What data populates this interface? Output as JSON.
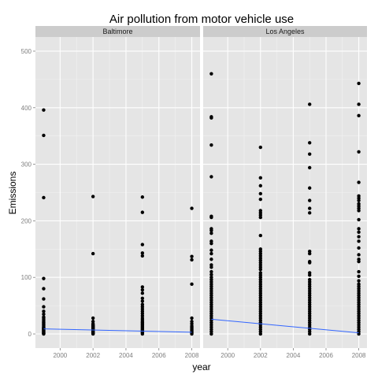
{
  "chart_data": {
    "type": "scatter",
    "title": "Air pollution from motor vehicle use",
    "xlabel": "year",
    "ylabel": "Emissions",
    "xlim": [
      1998.5,
      2008.5
    ],
    "ylim": [
      -25,
      525
    ],
    "x_ticks": [
      2000,
      2002,
      2004,
      2006,
      2008
    ],
    "y_ticks": [
      0,
      100,
      200,
      300,
      400,
      500
    ],
    "grid": true,
    "colors": {
      "panel": "#e5e5e5",
      "strip": "#cccccc",
      "grid": "#ffffff",
      "point": "#000000",
      "trend": "#3366ff"
    },
    "facets": [
      {
        "name": "Baltimore",
        "points": {
          "1999": [
            396,
            351,
            241,
            98,
            80,
            62,
            48,
            40,
            35,
            30,
            28,
            25,
            22,
            20,
            18,
            16,
            14,
            12,
            11,
            10,
            9,
            8,
            7,
            6,
            5,
            4,
            3,
            2,
            1,
            0.5,
            0
          ],
          "2002": [
            243,
            142,
            28,
            22,
            18,
            16,
            15,
            14,
            13,
            12,
            11,
            10,
            9,
            8,
            7,
            6,
            5,
            4,
            3,
            2,
            1,
            0.5,
            0
          ],
          "2005": [
            242,
            215,
            158,
            143,
            138,
            83,
            78,
            72,
            63,
            58,
            52,
            48,
            44,
            40,
            36,
            32,
            28,
            25,
            22,
            20,
            18,
            16,
            14,
            12,
            10,
            8,
            6,
            4,
            2,
            0
          ],
          "2008": [
            222,
            137,
            131,
            88,
            28,
            22,
            18,
            14,
            12,
            10,
            8,
            6,
            4,
            2,
            0
          ]
        },
        "trend": {
          "x": [
            1999,
            2008
          ],
          "y": [
            9,
            3
          ]
        }
      },
      {
        "name": "Los Angeles",
        "points": {
          "1999": [
            460,
            384,
            382,
            334,
            278,
            208,
            206,
            186,
            183,
            178,
            164,
            160,
            148,
            142,
            132,
            122,
            118,
            110,
            105,
            100,
            96,
            92,
            88,
            84,
            80,
            76,
            72,
            68,
            64,
            60,
            56,
            52,
            48,
            44,
            40,
            36,
            32,
            28,
            24,
            20,
            16,
            12,
            8,
            4,
            0
          ],
          "2002": [
            330,
            276,
            262,
            248,
            238,
            218,
            214,
            210,
            206,
            174,
            150,
            146,
            142,
            138,
            134,
            130,
            126,
            122,
            118,
            114,
            108,
            104,
            100,
            96,
            92,
            88,
            84,
            80,
            76,
            72,
            68,
            64,
            60,
            56,
            52,
            48,
            44,
            40,
            36,
            32,
            28,
            24,
            20,
            16,
            12,
            8,
            4,
            0
          ],
          "2005": [
            406,
            338,
            318,
            294,
            258,
            236,
            222,
            214,
            146,
            142,
            128,
            126,
            108,
            104,
            96,
            92,
            88,
            84,
            80,
            76,
            72,
            68,
            64,
            60,
            56,
            52,
            48,
            44,
            40,
            36,
            32,
            28,
            24,
            20,
            16,
            12,
            8,
            4,
            0
          ],
          "2008": [
            443,
            406,
            386,
            322,
            268,
            244,
            240,
            236,
            230,
            226,
            222,
            218,
            202,
            186,
            180,
            172,
            164,
            152,
            140,
            132,
            128,
            110,
            102,
            94,
            88,
            84,
            80,
            76,
            72,
            68,
            64,
            60,
            56,
            52,
            48,
            44,
            40,
            36,
            32,
            28,
            24,
            20,
            16,
            12,
            8,
            4,
            0
          ]
        },
        "trend": {
          "x": [
            1999,
            2008
          ],
          "y": [
            26,
            2
          ]
        }
      }
    ]
  }
}
